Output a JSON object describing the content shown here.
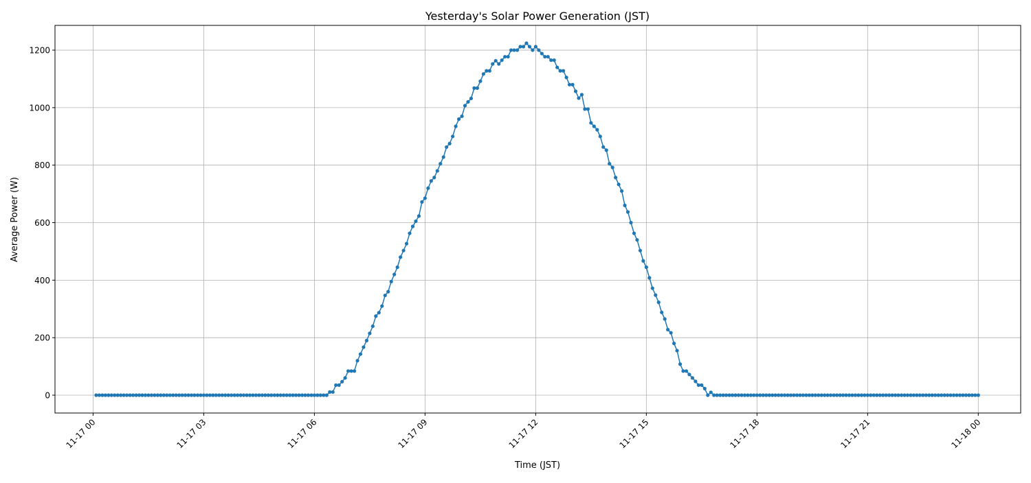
{
  "chart_data": {
    "type": "line",
    "title": "Yesterday's Solar Power Generation (JST)",
    "xlabel": "Time (JST)",
    "ylabel": "Average Power (W)",
    "grid": true,
    "line_color": "#1f77b4",
    "grid_color": "#b0b0b0",
    "marker": "circle",
    "ylim": [
      -62,
      1286
    ],
    "xlim": [
      "11-16 22:58",
      "11-18 01:09"
    ],
    "yticks": [
      0,
      200,
      400,
      600,
      800,
      1000,
      1200
    ],
    "xticks": [
      "11-17 00",
      "11-17 03",
      "11-17 06",
      "11-17 09",
      "11-17 12",
      "11-17 15",
      "11-17 18",
      "11-17 21",
      "11-18 00"
    ],
    "x": [
      "11-17 00:05",
      "11-17 00:10",
      "11-17 00:15",
      "11-17 00:20",
      "11-17 00:25",
      "11-17 00:30",
      "11-17 00:35",
      "11-17 00:40",
      "11-17 00:45",
      "11-17 00:50",
      "11-17 00:55",
      "11-17 01:00",
      "11-17 01:05",
      "11-17 01:10",
      "11-17 01:15",
      "11-17 01:20",
      "11-17 01:25",
      "11-17 01:30",
      "11-17 01:35",
      "11-17 01:40",
      "11-17 01:45",
      "11-17 01:50",
      "11-17 01:55",
      "11-17 02:00",
      "11-17 02:05",
      "11-17 02:10",
      "11-17 02:15",
      "11-17 02:20",
      "11-17 02:25",
      "11-17 02:30",
      "11-17 02:35",
      "11-17 02:40",
      "11-17 02:45",
      "11-17 02:50",
      "11-17 02:55",
      "11-17 03:00",
      "11-17 03:05",
      "11-17 03:10",
      "11-17 03:15",
      "11-17 03:20",
      "11-17 03:25",
      "11-17 03:30",
      "11-17 03:35",
      "11-17 03:40",
      "11-17 03:45",
      "11-17 03:50",
      "11-17 03:55",
      "11-17 04:00",
      "11-17 04:05",
      "11-17 04:10",
      "11-17 04:15",
      "11-17 04:20",
      "11-17 04:25",
      "11-17 04:30",
      "11-17 04:35",
      "11-17 04:40",
      "11-17 04:45",
      "11-17 04:50",
      "11-17 04:55",
      "11-17 05:00",
      "11-17 05:05",
      "11-17 05:10",
      "11-17 05:15",
      "11-17 05:20",
      "11-17 05:25",
      "11-17 05:30",
      "11-17 05:35",
      "11-17 05:40",
      "11-17 05:45",
      "11-17 05:50",
      "11-17 05:55",
      "11-17 06:00",
      "11-17 06:05",
      "11-17 06:10",
      "11-17 06:15",
      "11-17 06:20",
      "11-17 06:25",
      "11-17 06:30",
      "11-17 06:35",
      "11-17 06:40",
      "11-17 06:45",
      "11-17 06:50",
      "11-17 06:55",
      "11-17 07:00",
      "11-17 07:05",
      "11-17 07:10",
      "11-17 07:15",
      "11-17 07:20",
      "11-17 07:25",
      "11-17 07:30",
      "11-17 07:35",
      "11-17 07:40",
      "11-17 07:45",
      "11-17 07:50",
      "11-17 07:55",
      "11-17 08:00",
      "11-17 08:05",
      "11-17 08:10",
      "11-17 08:15",
      "11-17 08:20",
      "11-17 08:25",
      "11-17 08:30",
      "11-17 08:35",
      "11-17 08:40",
      "11-17 08:45",
      "11-17 08:50",
      "11-17 08:55",
      "11-17 09:00",
      "11-17 09:05",
      "11-17 09:10",
      "11-17 09:15",
      "11-17 09:20",
      "11-17 09:25",
      "11-17 09:30",
      "11-17 09:35",
      "11-17 09:40",
      "11-17 09:45",
      "11-17 09:50",
      "11-17 09:55",
      "11-17 10:00",
      "11-17 10:05",
      "11-17 10:10",
      "11-17 10:15",
      "11-17 10:20",
      "11-17 10:25",
      "11-17 10:30",
      "11-17 10:35",
      "11-17 10:40",
      "11-17 10:45",
      "11-17 10:50",
      "11-17 10:55",
      "11-17 11:00",
      "11-17 11:05",
      "11-17 11:10",
      "11-17 11:15",
      "11-17 11:20",
      "11-17 11:25",
      "11-17 11:30",
      "11-17 11:35",
      "11-17 11:40",
      "11-17 11:45",
      "11-17 11:50",
      "11-17 11:55",
      "11-17 12:00",
      "11-17 12:05",
      "11-17 12:10",
      "11-17 12:15",
      "11-17 12:20",
      "11-17 12:25",
      "11-17 12:30",
      "11-17 12:35",
      "11-17 12:40",
      "11-17 12:45",
      "11-17 12:50",
      "11-17 12:55",
      "11-17 13:00",
      "11-17 13:05",
      "11-17 13:10",
      "11-17 13:15",
      "11-17 13:20",
      "11-17 13:25",
      "11-17 13:30",
      "11-17 13:35",
      "11-17 13:40",
      "11-17 13:45",
      "11-17 13:50",
      "11-17 13:55",
      "11-17 14:00",
      "11-17 14:05",
      "11-17 14:10",
      "11-17 14:15",
      "11-17 14:20",
      "11-17 14:25",
      "11-17 14:30",
      "11-17 14:35",
      "11-17 14:40",
      "11-17 14:45",
      "11-17 14:50",
      "11-17 14:55",
      "11-17 15:00",
      "11-17 15:05",
      "11-17 15:10",
      "11-17 15:15",
      "11-17 15:20",
      "11-17 15:25",
      "11-17 15:30",
      "11-17 15:35",
      "11-17 15:40",
      "11-17 15:45",
      "11-17 15:50",
      "11-17 15:55",
      "11-17 16:00",
      "11-17 16:05",
      "11-17 16:10",
      "11-17 16:15",
      "11-17 16:20",
      "11-17 16:25",
      "11-17 16:30",
      "11-17 16:35",
      "11-17 16:40",
      "11-17 16:45",
      "11-17 16:50",
      "11-17 16:55",
      "11-17 17:00",
      "11-17 17:05",
      "11-17 17:10",
      "11-17 17:15",
      "11-17 17:20",
      "11-17 17:25",
      "11-17 17:30",
      "11-17 17:35",
      "11-17 17:40",
      "11-17 17:45",
      "11-17 17:50",
      "11-17 17:55",
      "11-17 18:00",
      "11-17 18:05",
      "11-17 18:10",
      "11-17 18:15",
      "11-17 18:20",
      "11-17 18:25",
      "11-17 18:30",
      "11-17 18:35",
      "11-17 18:40",
      "11-17 18:45",
      "11-17 18:50",
      "11-17 18:55",
      "11-17 19:00",
      "11-17 19:05",
      "11-17 19:10",
      "11-17 19:15",
      "11-17 19:20",
      "11-17 19:25",
      "11-17 19:30",
      "11-17 19:35",
      "11-17 19:40",
      "11-17 19:45",
      "11-17 19:50",
      "11-17 19:55",
      "11-17 20:00",
      "11-17 20:05",
      "11-17 20:10",
      "11-17 20:15",
      "11-17 20:20",
      "11-17 20:25",
      "11-17 20:30",
      "11-17 20:35",
      "11-17 20:40",
      "11-17 20:45",
      "11-17 20:50",
      "11-17 20:55",
      "11-17 21:00",
      "11-17 21:05",
      "11-17 21:10",
      "11-17 21:15",
      "11-17 21:20",
      "11-17 21:25",
      "11-17 21:30",
      "11-17 21:35",
      "11-17 21:40",
      "11-17 21:45",
      "11-17 21:50",
      "11-17 21:55",
      "11-17 22:00",
      "11-17 22:05",
      "11-17 22:10",
      "11-17 22:15",
      "11-17 22:20",
      "11-17 22:25",
      "11-17 22:30",
      "11-17 22:35",
      "11-17 22:40",
      "11-17 22:45",
      "11-17 22:50",
      "11-17 22:55",
      "11-17 23:00",
      "11-17 23:05",
      "11-17 23:10",
      "11-17 23:15",
      "11-17 23:20",
      "11-17 23:25",
      "11-17 23:30",
      "11-17 23:35",
      "11-17 23:40",
      "11-17 23:45",
      "11-17 23:50",
      "11-17 23:55",
      "11-18 00:00"
    ],
    "values": [
      0,
      0,
      0,
      0,
      0,
      0,
      0,
      0,
      0,
      0,
      0,
      0,
      0,
      0,
      0,
      0,
      0,
      0,
      0,
      0,
      0,
      0,
      0,
      0,
      0,
      0,
      0,
      0,
      0,
      0,
      0,
      0,
      0,
      0,
      0,
      0,
      0,
      0,
      0,
      0,
      0,
      0,
      0,
      0,
      0,
      0,
      0,
      0,
      0,
      0,
      0,
      0,
      0,
      0,
      0,
      0,
      0,
      0,
      0,
      0,
      0,
      0,
      0,
      0,
      0,
      0,
      0,
      0,
      0,
      0,
      0,
      0,
      0,
      0,
      0,
      0,
      11,
      11,
      35,
      35,
      47,
      60,
      84,
      84,
      84,
      120,
      143,
      167,
      190,
      215,
      240,
      275,
      287,
      310,
      347,
      360,
      395,
      420,
      445,
      480,
      503,
      527,
      563,
      587,
      605,
      623,
      672,
      685,
      720,
      745,
      757,
      780,
      805,
      828,
      863,
      875,
      900,
      935,
      960,
      970,
      1007,
      1020,
      1032,
      1068,
      1068,
      1092,
      1117,
      1128,
      1128,
      1152,
      1163,
      1152,
      1165,
      1177,
      1177,
      1200,
      1200,
      1200,
      1212,
      1212,
      1224,
      1212,
      1200,
      1212,
      1200,
      1188,
      1177,
      1177,
      1165,
      1165,
      1140,
      1128,
      1128,
      1105,
      1080,
      1080,
      1057,
      1033,
      1045,
      995,
      995,
      947,
      935,
      923,
      900,
      863,
      852,
      805,
      792,
      757,
      733,
      710,
      660,
      637,
      600,
      563,
      540,
      503,
      467,
      445,
      408,
      372,
      348,
      323,
      288,
      265,
      228,
      217,
      180,
      155,
      108,
      84,
      84,
      72,
      60,
      48,
      35,
      35,
      23,
      0,
      10,
      0,
      0,
      0,
      0,
      0,
      0,
      0,
      0,
      0,
      0,
      0,
      0,
      0,
      0,
      0,
      0,
      0,
      0,
      0,
      0,
      0,
      0,
      0,
      0,
      0,
      0,
      0,
      0,
      0,
      0,
      0,
      0,
      0,
      0,
      0,
      0,
      0,
      0,
      0,
      0,
      0,
      0,
      0,
      0,
      0,
      0,
      0,
      0,
      0,
      0,
      0,
      0,
      0,
      0,
      0,
      0,
      0,
      0,
      0,
      0,
      0,
      0,
      0,
      0,
      0,
      0,
      0,
      0,
      0,
      0,
      0,
      0,
      0,
      0,
      0,
      0,
      0,
      0,
      0,
      0,
      0,
      0,
      0,
      0,
      0,
      0,
      0
    ]
  }
}
